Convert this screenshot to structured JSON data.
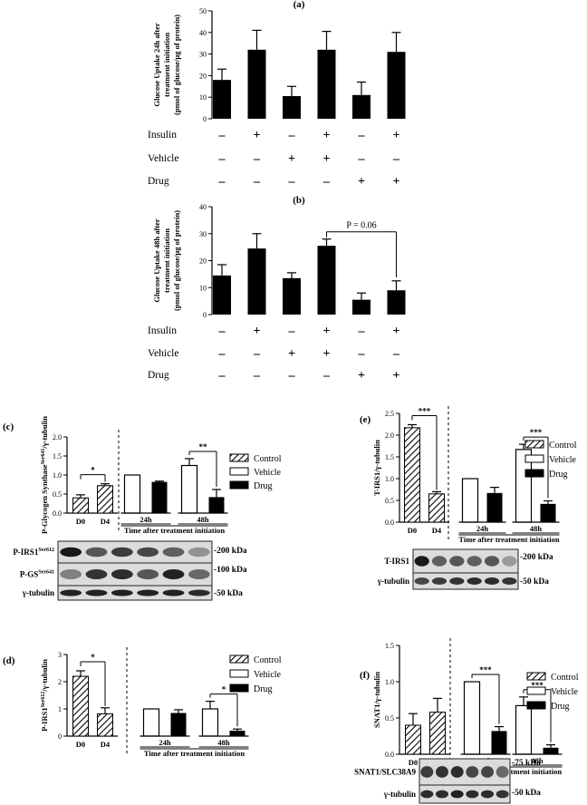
{
  "colors": {
    "black": "#000000",
    "white": "#ffffff",
    "blot_band": "#1a1a1a",
    "blot_bg": "#d9d9d9"
  },
  "chart_data": [
    {
      "id": "a",
      "panel_label": "(a)",
      "type": "bar",
      "ylabel_lines": [
        "Glucose Uptake 24h after",
        "treatment initiation",
        "(pmol of glucose/µg of protein)"
      ],
      "ylim": [
        0,
        50
      ],
      "yticks": [
        0,
        10,
        20,
        30,
        40,
        50
      ],
      "values": [
        18,
        32,
        10.5,
        32,
        11,
        31
      ],
      "errors": [
        5,
        9,
        4.5,
        8.5,
        6,
        9
      ],
      "treatments": [
        {
          "label": "Insulin",
          "signs": [
            "-",
            "+",
            "-",
            "+",
            "-",
            "+"
          ]
        },
        {
          "label": "Vehicle",
          "signs": [
            "-",
            "-",
            "+",
            "+",
            "-",
            "-"
          ]
        },
        {
          "label": "Drug",
          "signs": [
            "-",
            "-",
            "-",
            "-",
            "+",
            "+"
          ]
        }
      ]
    },
    {
      "id": "b",
      "panel_label": "(b)",
      "type": "bar",
      "ylabel_lines": [
        "Glucose Uptake 48h after",
        "treatment initiation",
        "(pmol of glucose/µg of protein)"
      ],
      "ylim": [
        0,
        40
      ],
      "yticks": [
        0,
        10,
        20,
        30,
        40
      ],
      "values": [
        14.5,
        24.5,
        13.5,
        25.5,
        5.5,
        9
      ],
      "errors": [
        4,
        5.5,
        2,
        2.5,
        2.5,
        3.5
      ],
      "annotation": {
        "text": "P = 0.06",
        "from_bar": 3,
        "to_bar": 5
      },
      "treatments": [
        {
          "label": "Insulin",
          "signs": [
            "-",
            "+",
            "-",
            "+",
            "-",
            "+"
          ]
        },
        {
          "label": "Vehicle",
          "signs": [
            "-",
            "-",
            "+",
            "+",
            "-",
            "-"
          ]
        },
        {
          "label": "Drug",
          "signs": [
            "-",
            "-",
            "-",
            "-",
            "+",
            "+"
          ]
        }
      ]
    },
    {
      "id": "c",
      "panel_label": "(c)",
      "type": "bar",
      "ylabel": "P-Glycogen Synthase^Ser641/γ-tubulin",
      "ylim": [
        0,
        2.0
      ],
      "yticks": [
        "0.0",
        "0.5",
        "1.0",
        "1.5",
        "2.0"
      ],
      "baseline": {
        "categories": [
          "D0",
          "D4"
        ],
        "values": [
          0.4,
          0.72
        ],
        "errors": [
          0.08,
          0.05
        ],
        "significance": "*"
      },
      "timepoints": [
        {
          "label": "24h",
          "vehicle": 1.0,
          "vehicle_err": 0,
          "drug": 0.82,
          "drug_err": 0.02
        },
        {
          "label": "48h",
          "vehicle": 1.25,
          "vehicle_err": 0.18,
          "drug": 0.42,
          "drug_err": 0.2,
          "significance": "**"
        }
      ],
      "xlabel": "Time after treatment initiation",
      "legend": [
        "Control",
        "Vehicle",
        "Drug"
      ]
    },
    {
      "id": "d",
      "panel_label": "(d)",
      "type": "bar",
      "ylabel": "P-IRS1^Ser612/γ-tubulin",
      "ylim": [
        0,
        3
      ],
      "yticks": [
        "0",
        "1",
        "2",
        "3"
      ],
      "baseline": {
        "categories": [
          "D0",
          "D4"
        ],
        "values": [
          2.2,
          0.82
        ],
        "errors": [
          0.2,
          0.22
        ],
        "significance": "*"
      },
      "timepoints": [
        {
          "label": "24h",
          "vehicle": 1.0,
          "vehicle_err": 0,
          "drug": 0.85,
          "drug_err": 0.12
        },
        {
          "label": "48h",
          "vehicle": 1.0,
          "vehicle_err": 0.28,
          "drug": 0.2,
          "drug_err": 0.06,
          "significance": "*"
        }
      ],
      "xlabel": "Time after treatment initiation",
      "legend": [
        "Control",
        "Vehicle",
        "Drug"
      ]
    },
    {
      "id": "e",
      "panel_label": "(e)",
      "type": "bar",
      "ylabel": "T-IRS1/γ-tubulin",
      "ylim": [
        0,
        2.5
      ],
      "yticks": [
        "0.0",
        "0.5",
        "1.0",
        "1.5",
        "2.0",
        "2.5"
      ],
      "baseline": {
        "categories": [
          "D0",
          "D4"
        ],
        "values": [
          2.17,
          0.65
        ],
        "errors": [
          0.07,
          0.05
        ],
        "significance": "***"
      },
      "timepoints": [
        {
          "label": "24h",
          "vehicle": 1.0,
          "vehicle_err": 0,
          "drug": 0.67,
          "drug_err": 0.13
        },
        {
          "label": "48h",
          "vehicle": 1.67,
          "vehicle_err": 0.12,
          "drug": 0.42,
          "drug_err": 0.07,
          "significance": "***"
        }
      ],
      "xlabel": "Time after treatment initiation",
      "legend": [
        "Control",
        "Vehicle",
        "Drug"
      ]
    },
    {
      "id": "f",
      "panel_label": "(f)",
      "type": "bar",
      "ylabel": "SNAT1/γ-tubulin",
      "ylim": [
        0,
        1.5
      ],
      "yticks": [
        "0.0",
        "0.5",
        "1.0",
        "1.5"
      ],
      "baseline": {
        "categories": [
          "D0",
          "D4"
        ],
        "values": [
          0.4,
          0.58
        ],
        "errors": [
          0.16,
          0.19
        ]
      },
      "timepoints": [
        {
          "label": "24h",
          "vehicle": 1.0,
          "vehicle_err": 0,
          "drug": 0.32,
          "drug_err": 0.06,
          "significance": "***"
        },
        {
          "label": "48h",
          "vehicle": 0.67,
          "vehicle_err": 0.12,
          "drug": 0.09,
          "drug_err": 0.04,
          "significance": "***"
        }
      ],
      "xlabel": "Time after treatment initiation",
      "legend": [
        "Control",
        "Vehicle",
        "Drug"
      ]
    }
  ],
  "blots": {
    "c": {
      "rows": [
        {
          "label": "P-IRS1",
          "sup": "Ser612",
          "kda": "200 kDa",
          "bands": [
            0.95,
            0.6,
            0.75,
            0.7,
            0.55,
            0.25
          ]
        },
        {
          "label": "P-GS",
          "sup": "Ser641",
          "kda": "100 kDa",
          "bands": [
            0.35,
            0.8,
            0.85,
            0.6,
            0.9,
            0.5
          ]
        },
        {
          "label": "γ-tubulin",
          "sup": "",
          "kda": "50 kDa",
          "bands": [
            0.9,
            0.9,
            0.9,
            0.9,
            0.9,
            0.85
          ]
        }
      ]
    },
    "e": {
      "rows": [
        {
          "label": "T-IRS1",
          "sup": "",
          "kda": "200 kDa",
          "bands": [
            0.95,
            0.55,
            0.6,
            0.55,
            0.6,
            0.2
          ]
        },
        {
          "label": "γ-tubulin",
          "sup": "",
          "kda": "50 kDa",
          "bands": [
            0.7,
            0.75,
            0.8,
            0.85,
            0.85,
            0.8
          ]
        }
      ]
    },
    "f": {
      "rows": [
        {
          "label": "SNAT1/SLC38A9",
          "sup": "",
          "kda": "75 kDa",
          "bands": [
            0.75,
            0.8,
            0.85,
            0.7,
            0.7,
            0.5
          ]
        },
        {
          "label": "γ-tubulin",
          "sup": "",
          "kda": "50 kDa",
          "bands": [
            0.85,
            0.85,
            0.9,
            0.85,
            0.85,
            0.8
          ]
        }
      ]
    }
  }
}
